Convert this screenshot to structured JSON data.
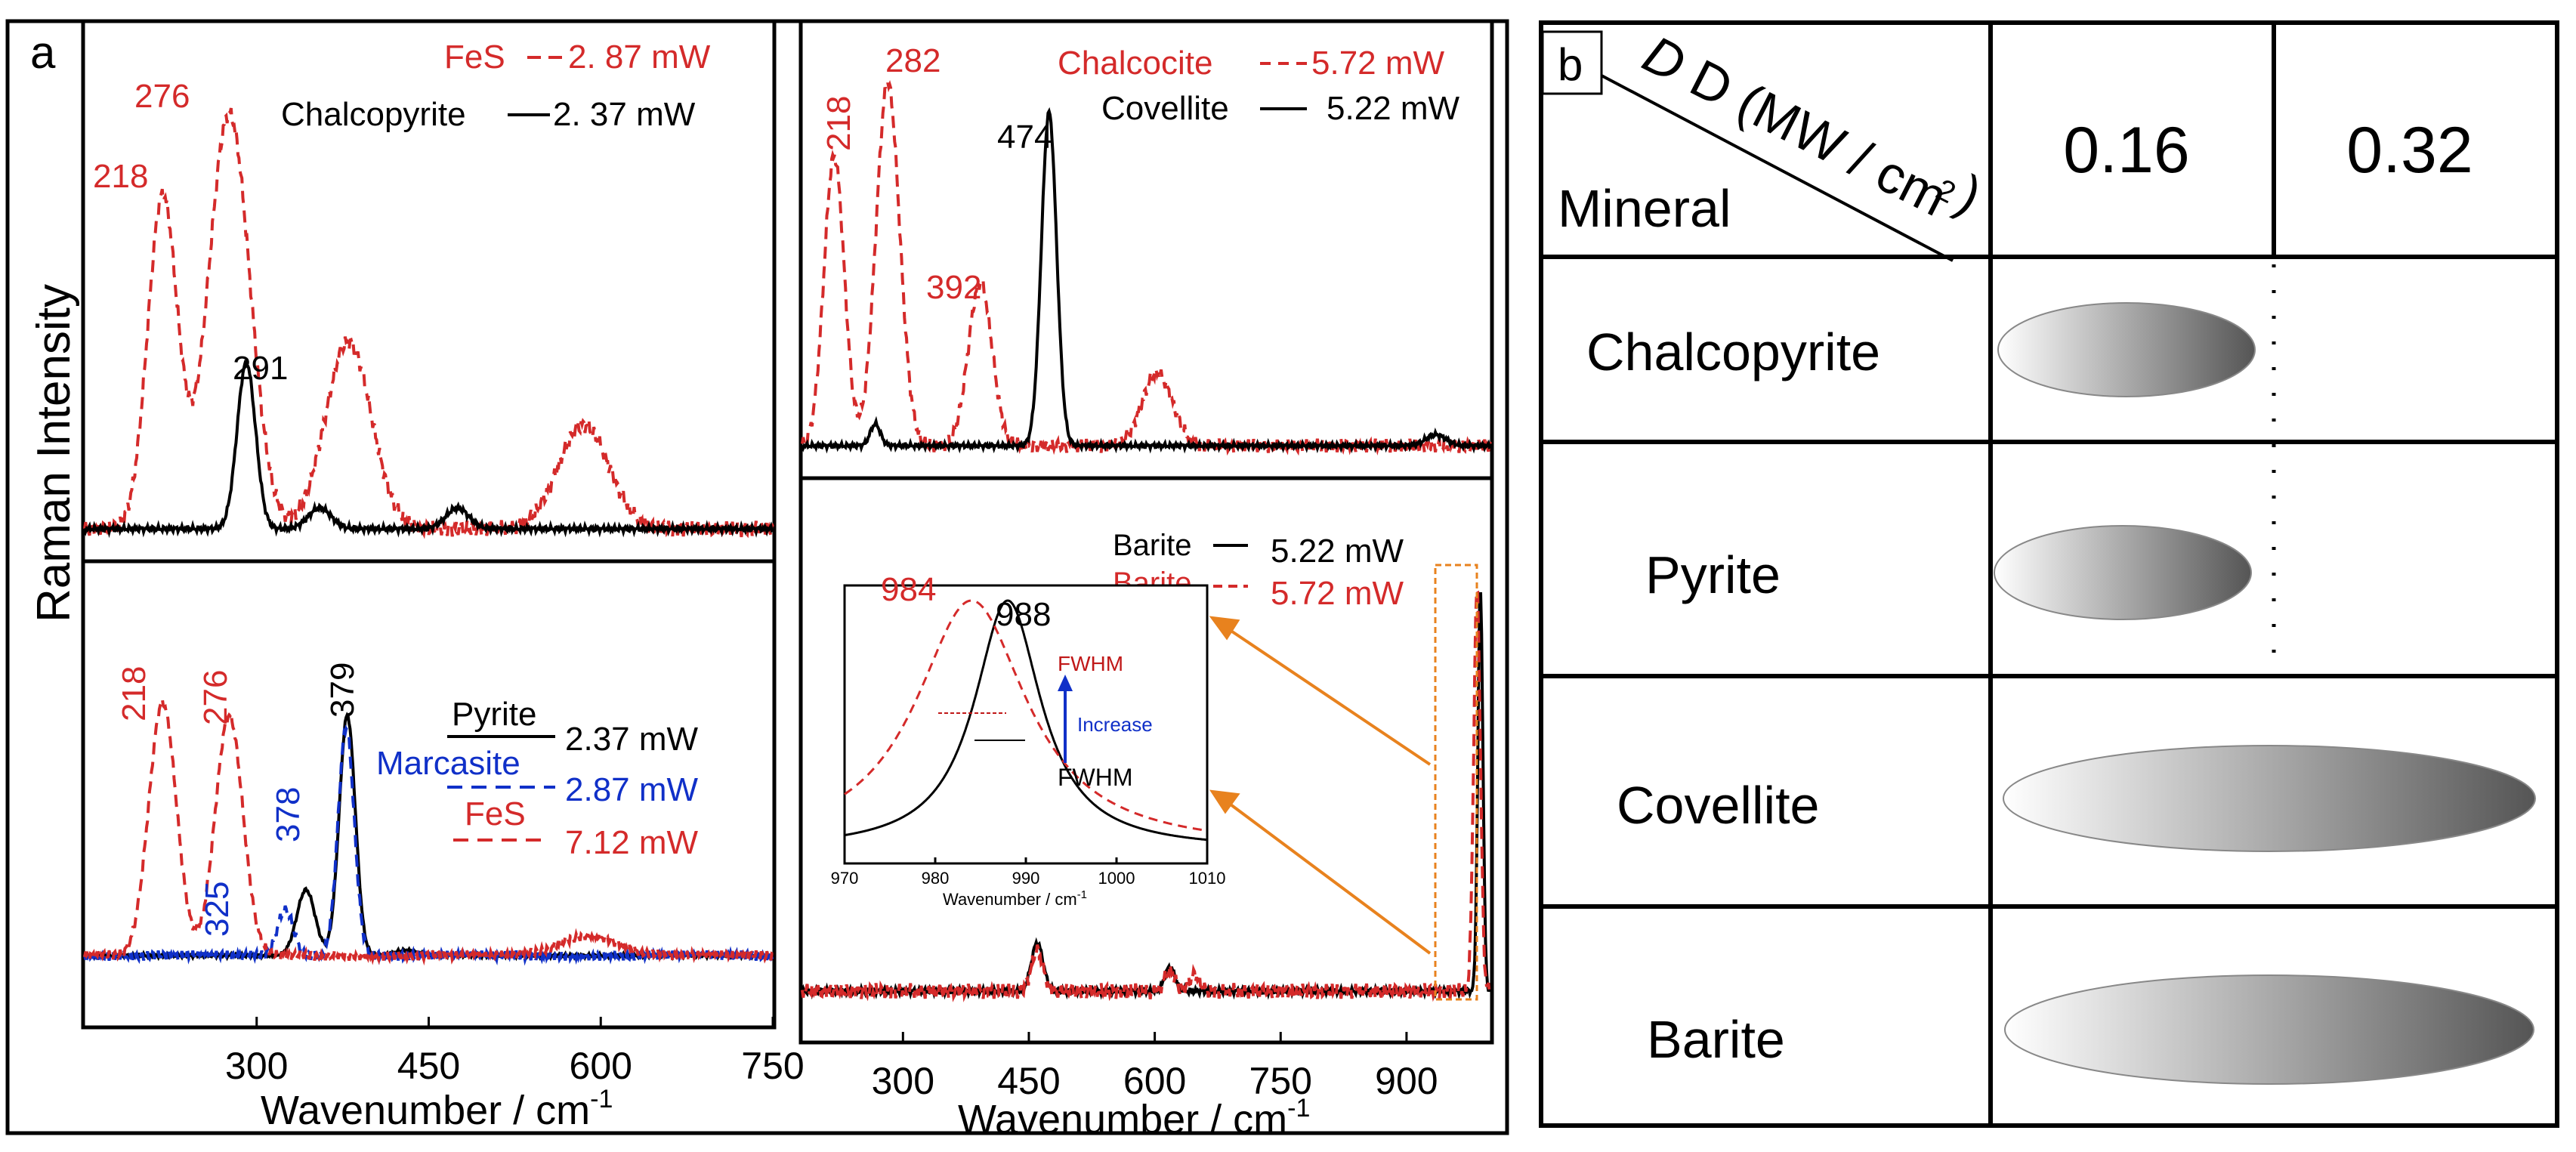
{
  "colors": {
    "black": "#000000",
    "red": "#d42a2a",
    "blue": "#1030c8",
    "orange": "#e8821e",
    "inset_red": "#c01818"
  },
  "panel_a": {
    "label": "a",
    "ylabel": "Raman Intensity",
    "xlabel_left": "Wavenumber / cm",
    "xlabel_right": "Wavenumber / cm",
    "xlabel_sup": "-1"
  },
  "panel_b": {
    "label": "b",
    "header_diag": "D (MW / cm",
    "header_diag_sup": "2",
    "header_diag_close": ")",
    "header_mineral": "Mineral",
    "col1": "0.16",
    "col2": "0.32",
    "rows": [
      "Chalcopyrite",
      "Pyrite",
      "Covellite",
      "Barite"
    ]
  },
  "chart_data": [
    {
      "id": "top-left",
      "type": "line",
      "xlim": [
        150,
        750
      ],
      "xticks": [],
      "series": [
        {
          "name": "FeS",
          "power": "2. 87 mW",
          "style": "red-dashed",
          "peaks": [
            218,
            276,
            380,
            585
          ]
        },
        {
          "name": "Chalcopyrite",
          "power": "2. 37 mW",
          "style": "black-solid",
          "peaks": [
            291,
            355,
            475
          ]
        }
      ],
      "peak_labels": [
        "218",
        "276",
        "291"
      ]
    },
    {
      "id": "bottom-left",
      "type": "line",
      "xlim": [
        150,
        750
      ],
      "xticks": [
        "300",
        "450",
        "600",
        "750"
      ],
      "series": [
        {
          "name": "Pyrite",
          "power": "2.37 mW",
          "style": "black-solid",
          "peaks": [
            343,
            379,
            430
          ]
        },
        {
          "name": "Marcasite",
          "power": "2.87 mW",
          "style": "blue-dashed",
          "peaks": [
            325,
            378
          ]
        },
        {
          "name": "FeS",
          "power": "7.12 mW",
          "style": "red-dashed",
          "peaks": [
            218,
            276,
            590
          ]
        }
      ],
      "peak_labels": [
        "218",
        "276",
        "325",
        "378",
        "379"
      ]
    },
    {
      "id": "top-right",
      "type": "line",
      "xlim": [
        180,
        1000
      ],
      "xticks": [],
      "series": [
        {
          "name": "Chalcocite",
          "power": "5.72 mW",
          "style": "red-dashed",
          "peaks": [
            218,
            282,
            392,
            603
          ]
        },
        {
          "name": "Covellite",
          "power": "5.22 mW",
          "style": "black-solid",
          "peaks": [
            267,
            474,
            935
          ]
        }
      ],
      "peak_labels": [
        "218",
        "282",
        "392",
        "474"
      ]
    },
    {
      "id": "bottom-right",
      "type": "line",
      "xlim": [
        180,
        1000
      ],
      "xticks": [
        "300",
        "450",
        "600",
        "750",
        "900"
      ],
      "series": [
        {
          "name": "Barite",
          "power": "5.22 mW",
          "style": "black-solid",
          "peaks": [
            460,
            618,
            988
          ]
        },
        {
          "name": "Barite",
          "power": "5.72 mW",
          "style": "red-dashed",
          "peaks": [
            460,
            618,
            647,
            984
          ]
        }
      ]
    },
    {
      "id": "inset",
      "type": "line",
      "xlim": [
        970,
        1010
      ],
      "xticks": [
        "970",
        "980",
        "990",
        "1000",
        "1010"
      ],
      "xlabel": "Wavenumber / cm",
      "xlabel_sup": "-1",
      "series": [
        {
          "name": "Barite 5.22 mW",
          "style": "black-solid",
          "center": 988,
          "fwhm": 9
        },
        {
          "name": "Barite 5.72 mW",
          "style": "red-dashed",
          "center": 984,
          "fwhm": 15
        }
      ],
      "peak_labels": [
        "984",
        "988"
      ],
      "annotations": {
        "fwhm_red": "FWHM",
        "increase": "Increase",
        "fwhm_black": "FWHM"
      }
    }
  ]
}
